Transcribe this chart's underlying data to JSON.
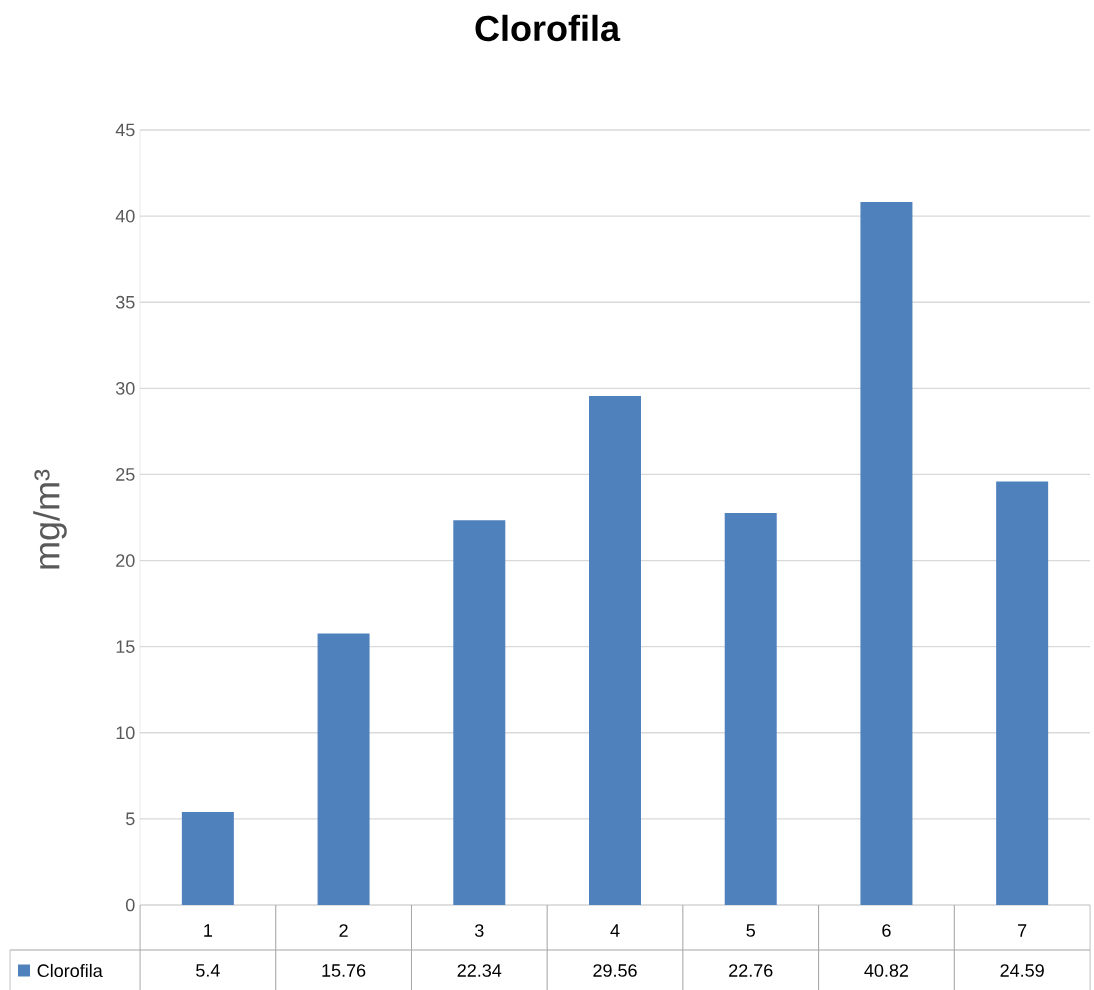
{
  "chart_data": {
    "type": "bar",
    "title": "Clorofila",
    "ylabel": "mg/m³",
    "categories": [
      "1",
      "2",
      "3",
      "4",
      "5",
      "6",
      "7"
    ],
    "series": [
      {
        "name": "Clorofila",
        "color": "#4f81bd",
        "values": [
          5.4,
          15.76,
          22.34,
          29.56,
          22.76,
          40.82,
          24.59
        ]
      }
    ],
    "ylim": [
      0,
      45
    ],
    "yticks": [
      0,
      5,
      10,
      15,
      20,
      25,
      30,
      35,
      40,
      45
    ],
    "grid": "y",
    "legend": "bottom",
    "data_labels": true
  }
}
